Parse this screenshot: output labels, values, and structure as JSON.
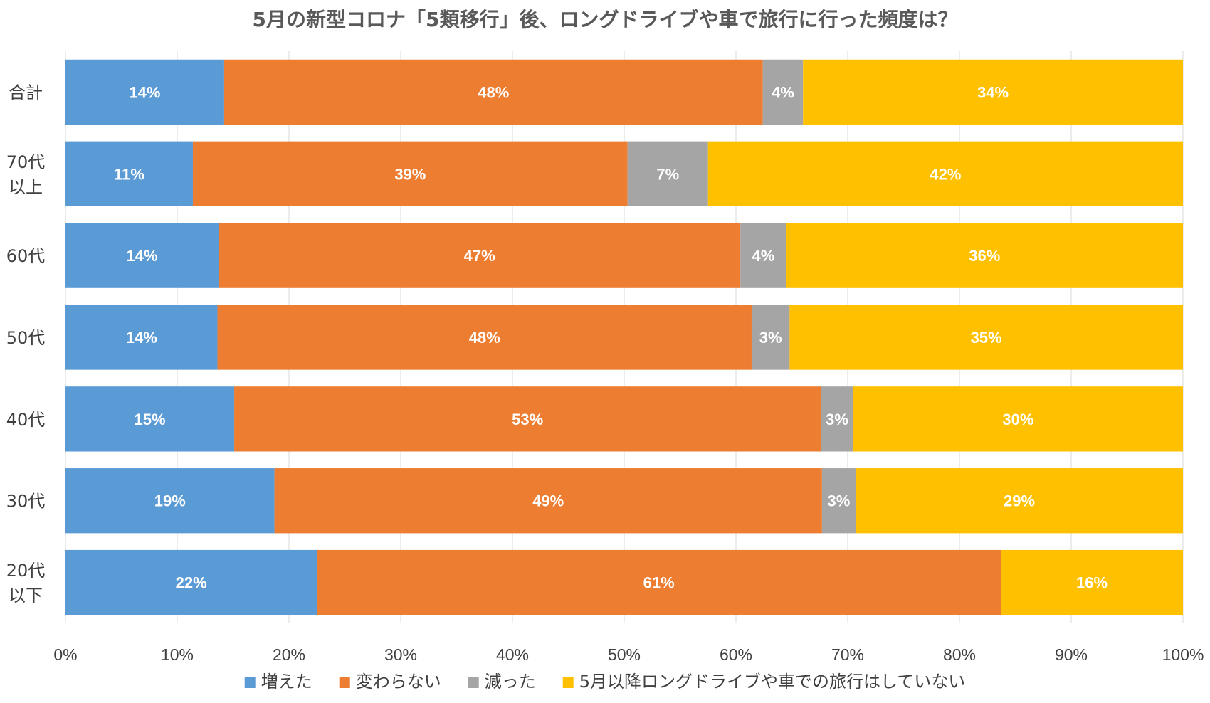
{
  "chart_data": {
    "type": "bar",
    "orientation": "horizontal",
    "stacked": true,
    "title": "5月の新型コロナ「5類移行」後、ロングドライブや車で旅行に行った頻度は？",
    "categories": [
      "合計",
      "70代\n以上",
      "60代",
      "50代",
      "40代",
      "30代",
      "20代\n以下"
    ],
    "series": [
      {
        "name": "増えた",
        "color": "#5B9BD5",
        "values": [
          14.2,
          11.4,
          13.7,
          13.6,
          15.1,
          18.7,
          22.5
        ]
      },
      {
        "name": "変わらない",
        "color": "#ED7D31",
        "values": [
          48.2,
          38.9,
          46.7,
          47.8,
          52.5,
          49.0,
          61.2
        ]
      },
      {
        "name": "減った",
        "color": "#A5A5A5",
        "values": [
          3.6,
          7.2,
          4.1,
          3.4,
          2.9,
          3.0,
          0
        ]
      },
      {
        "name": "5月以降ロングドライブや車での旅行はしていない",
        "color": "#FFC000",
        "values": [
          34.0,
          42.5,
          35.5,
          35.2,
          29.5,
          29.3,
          16.3
        ]
      }
    ],
    "data_labels": [
      [
        "14%",
        "48%",
        "4%",
        "34%"
      ],
      [
        "11%",
        "39%",
        "7%",
        "42%"
      ],
      [
        "14%",
        "47%",
        "4%",
        "36%"
      ],
      [
        "14%",
        "48%",
        "3%",
        "35%"
      ],
      [
        "15%",
        "53%",
        "3%",
        "30%"
      ],
      [
        "19%",
        "49%",
        "3%",
        "29%"
      ],
      [
        "22%",
        "61%",
        "",
        "16%"
      ]
    ],
    "x_ticks": [
      "0%",
      "10%",
      "20%",
      "30%",
      "40%",
      "50%",
      "60%",
      "70%",
      "80%",
      "90%",
      "100%"
    ],
    "xlim": [
      0,
      100
    ],
    "grid": true,
    "legend_position": "bottom"
  }
}
